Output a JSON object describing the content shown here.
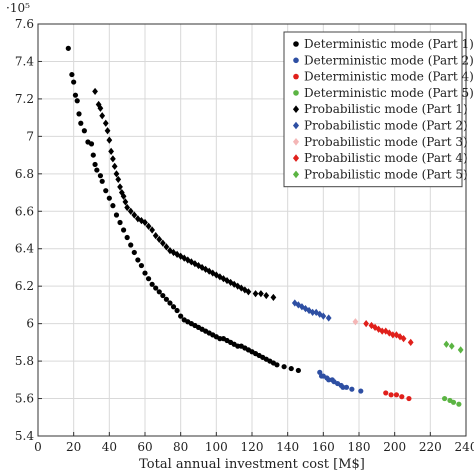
{
  "chart_data": {
    "type": "scatter",
    "xlabel": "Total annual investment cost [M$]",
    "ylabel": "",
    "y_multiplier": "·10⁵",
    "xlim": [
      0,
      240
    ],
    "ylim": [
      5.4,
      7.6
    ],
    "xticks": [
      0,
      20,
      40,
      60,
      80,
      100,
      120,
      140,
      160,
      180,
      200,
      220,
      240
    ],
    "yticks": [
      5.4,
      5.6,
      5.8,
      6,
      6.2,
      6.4,
      6.6,
      6.8,
      7,
      7.2,
      7.4,
      7.6
    ],
    "xtick_labels": [
      "0",
      "20",
      "40",
      "60",
      "80",
      "100",
      "120",
      "140",
      "160",
      "180",
      "200",
      "220",
      "240"
    ],
    "ytick_labels": [
      "5.4",
      "5.6",
      "5.8",
      "6",
      "6.2",
      "6.4",
      "6.6",
      "6.8",
      "7",
      "7.2",
      "7.4",
      "7.6"
    ],
    "grid": true,
    "legend_position": "top-right",
    "series": [
      {
        "name": "Deterministic mode (Part 1)",
        "marker": "circle",
        "color": "#000000",
        "points": [
          [
            17,
            7.47
          ],
          [
            19,
            7.33
          ],
          [
            20,
            7.29
          ],
          [
            21,
            7.22
          ],
          [
            22,
            7.19
          ],
          [
            23,
            7.12
          ],
          [
            24,
            7.07
          ],
          [
            26,
            7.03
          ],
          [
            28,
            6.97
          ],
          [
            30,
            6.96
          ],
          [
            31,
            6.9
          ],
          [
            32,
            6.85
          ],
          [
            33,
            6.82
          ],
          [
            35,
            6.79
          ],
          [
            36,
            6.76
          ],
          [
            38,
            6.71
          ],
          [
            40,
            6.67
          ],
          [
            42,
            6.63
          ],
          [
            44,
            6.58
          ],
          [
            46,
            6.54
          ],
          [
            48,
            6.5
          ],
          [
            50,
            6.46
          ],
          [
            52,
            6.42
          ],
          [
            54,
            6.38
          ],
          [
            56,
            6.34
          ],
          [
            58,
            6.31
          ],
          [
            60,
            6.27
          ],
          [
            62,
            6.24
          ],
          [
            64,
            6.21
          ],
          [
            66,
            6.19
          ],
          [
            68,
            6.17
          ],
          [
            70,
            6.15
          ],
          [
            72,
            6.13
          ],
          [
            74,
            6.11
          ],
          [
            76,
            6.09
          ],
          [
            78,
            6.07
          ],
          [
            80,
            6.04
          ],
          [
            82,
            6.02
          ],
          [
            84,
            6.01
          ],
          [
            86,
            6.0
          ],
          [
            88,
            5.99
          ],
          [
            90,
            5.98
          ],
          [
            92,
            5.97
          ],
          [
            94,
            5.96
          ],
          [
            96,
            5.95
          ],
          [
            98,
            5.94
          ],
          [
            100,
            5.93
          ],
          [
            102,
            5.92
          ],
          [
            104,
            5.92
          ],
          [
            106,
            5.91
          ],
          [
            108,
            5.9
          ],
          [
            110,
            5.89
          ],
          [
            112,
            5.88
          ],
          [
            114,
            5.88
          ],
          [
            116,
            5.87
          ],
          [
            118,
            5.86
          ],
          [
            120,
            5.85
          ],
          [
            122,
            5.84
          ],
          [
            124,
            5.83
          ],
          [
            126,
            5.82
          ],
          [
            128,
            5.81
          ],
          [
            130,
            5.8
          ],
          [
            132,
            5.79
          ],
          [
            134,
            5.78
          ],
          [
            138,
            5.77
          ],
          [
            142,
            5.76
          ],
          [
            146,
            5.75
          ]
        ]
      },
      {
        "name": "Deterministic mode (Part 2)",
        "marker": "circle",
        "color": "#2e4fa3",
        "points": [
          [
            158,
            5.74
          ],
          [
            159,
            5.72
          ],
          [
            160,
            5.72
          ],
          [
            162,
            5.71
          ],
          [
            163,
            5.7
          ],
          [
            165,
            5.7
          ],
          [
            166,
            5.69
          ],
          [
            168,
            5.68
          ],
          [
            170,
            5.67
          ],
          [
            171,
            5.66
          ],
          [
            173,
            5.66
          ],
          [
            176,
            5.65
          ],
          [
            181,
            5.64
          ]
        ]
      },
      {
        "name": "Deterministic mode (Part 4)",
        "marker": "circle",
        "color": "#e0201b",
        "points": [
          [
            195,
            5.63
          ],
          [
            198,
            5.62
          ],
          [
            201,
            5.62
          ],
          [
            204,
            5.61
          ],
          [
            208,
            5.6
          ]
        ]
      },
      {
        "name": "Deterministic mode (Part 5)",
        "marker": "circle",
        "color": "#5bb443",
        "points": [
          [
            228,
            5.6
          ],
          [
            231,
            5.59
          ],
          [
            233,
            5.58
          ],
          [
            236,
            5.57
          ]
        ]
      },
      {
        "name": "Probabilistic mode (Part 1)",
        "marker": "diamond",
        "color": "#000000",
        "points": [
          [
            32,
            7.24
          ],
          [
            34,
            7.17
          ],
          [
            35,
            7.15
          ],
          [
            36,
            7.11
          ],
          [
            38,
            7.07
          ],
          [
            39,
            7.03
          ],
          [
            40,
            6.98
          ],
          [
            41,
            6.92
          ],
          [
            42,
            6.88
          ],
          [
            43,
            6.84
          ],
          [
            44,
            6.8
          ],
          [
            45,
            6.77
          ],
          [
            46,
            6.73
          ],
          [
            47,
            6.7
          ],
          [
            48,
            6.68
          ],
          [
            49,
            6.65
          ],
          [
            50,
            6.62
          ],
          [
            52,
            6.6
          ],
          [
            54,
            6.58
          ],
          [
            56,
            6.56
          ],
          [
            58,
            6.55
          ],
          [
            60,
            6.54
          ],
          [
            62,
            6.52
          ],
          [
            64,
            6.5
          ],
          [
            66,
            6.47
          ],
          [
            68,
            6.45
          ],
          [
            70,
            6.43
          ],
          [
            72,
            6.41
          ],
          [
            74,
            6.39
          ],
          [
            76,
            6.38
          ],
          [
            78,
            6.37
          ],
          [
            80,
            6.36
          ],
          [
            82,
            6.35
          ],
          [
            84,
            6.34
          ],
          [
            86,
            6.33
          ],
          [
            88,
            6.32
          ],
          [
            90,
            6.31
          ],
          [
            92,
            6.3
          ],
          [
            94,
            6.29
          ],
          [
            96,
            6.28
          ],
          [
            98,
            6.27
          ],
          [
            100,
            6.26
          ],
          [
            102,
            6.25
          ],
          [
            104,
            6.24
          ],
          [
            106,
            6.23
          ],
          [
            108,
            6.22
          ],
          [
            110,
            6.21
          ],
          [
            112,
            6.2
          ],
          [
            114,
            6.19
          ],
          [
            116,
            6.18
          ],
          [
            118,
            6.17
          ],
          [
            122,
            6.16
          ],
          [
            125,
            6.16
          ],
          [
            128,
            6.15
          ],
          [
            132,
            6.14
          ]
        ]
      },
      {
        "name": "Probabilistic mode (Part 2)",
        "marker": "diamond",
        "color": "#2e4fa3",
        "points": [
          [
            144,
            6.11
          ],
          [
            146,
            6.1
          ],
          [
            148,
            6.09
          ],
          [
            150,
            6.08
          ],
          [
            152,
            6.07
          ],
          [
            154,
            6.06
          ],
          [
            156,
            6.06
          ],
          [
            158,
            6.05
          ],
          [
            160,
            6.04
          ],
          [
            163,
            6.03
          ]
        ]
      },
      {
        "name": "Probabilistic mode (Part 3)",
        "marker": "diamond",
        "color": "#f4b6b6",
        "points": [
          [
            178,
            6.01
          ]
        ]
      },
      {
        "name": "Probabilistic mode (Part 4)",
        "marker": "diamond",
        "color": "#e0201b",
        "points": [
          [
            184,
            6.0
          ],
          [
            187,
            5.99
          ],
          [
            189,
            5.98
          ],
          [
            191,
            5.97
          ],
          [
            193,
            5.96
          ],
          [
            195,
            5.96
          ],
          [
            197,
            5.95
          ],
          [
            199,
            5.94
          ],
          [
            201,
            5.94
          ],
          [
            203,
            5.93
          ],
          [
            205,
            5.92
          ],
          [
            209,
            5.9
          ]
        ]
      },
      {
        "name": "Probabilistic mode (Part 5)",
        "marker": "diamond",
        "color": "#5bb443",
        "points": [
          [
            229,
            5.89
          ],
          [
            232,
            5.88
          ],
          [
            237,
            5.86
          ]
        ]
      }
    ]
  }
}
